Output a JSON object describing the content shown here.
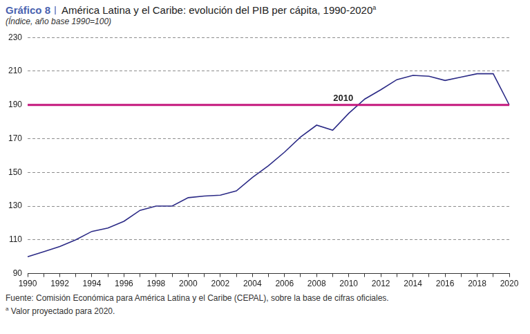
{
  "chart_data": {
    "type": "line",
    "label": "Gráfico 8",
    "title": "América Latina y el Caribe: evolución del PIB per cápita, 1990-2020",
    "title_note": "a",
    "subtitle": "(Índice, año base 1990=100)",
    "source": "Fuente: Comisión Económica para América Latina y el Caribe (CEPAL), sobre la base de cifras oficiales.",
    "notes": [
      {
        "marker": "a",
        "text": "Valor proyectado para 2020."
      }
    ],
    "categories": [
      "1990",
      null,
      "1992",
      null,
      "1994",
      null,
      "1996",
      null,
      "1998",
      null,
      "2000",
      null,
      "2002",
      null,
      "2004",
      null,
      "2006",
      null,
      "2008",
      null,
      "2010",
      null,
      "2012",
      null,
      "2014",
      null,
      "2016",
      null,
      "2018",
      null,
      "2020"
    ],
    "values": [
      100,
      103,
      106,
      110,
      115,
      117,
      121,
      127.5,
      130,
      130,
      135,
      136,
      136.5,
      139,
      147,
      154,
      162,
      171,
      178,
      175,
      185,
      193.5,
      199,
      205,
      207.5,
      207,
      204.5,
      206.5,
      208.5,
      208.5,
      190
    ],
    "color": "#2b2a86",
    "reference_line": {
      "value": 190,
      "label": "2010",
      "x": "2010",
      "color": "#c4177c"
    },
    "ylim": [
      90,
      230
    ],
    "yticks": [
      90,
      110,
      130,
      150,
      170,
      190,
      210,
      230
    ],
    "grid": true,
    "legend": false,
    "data_labels": false
  }
}
